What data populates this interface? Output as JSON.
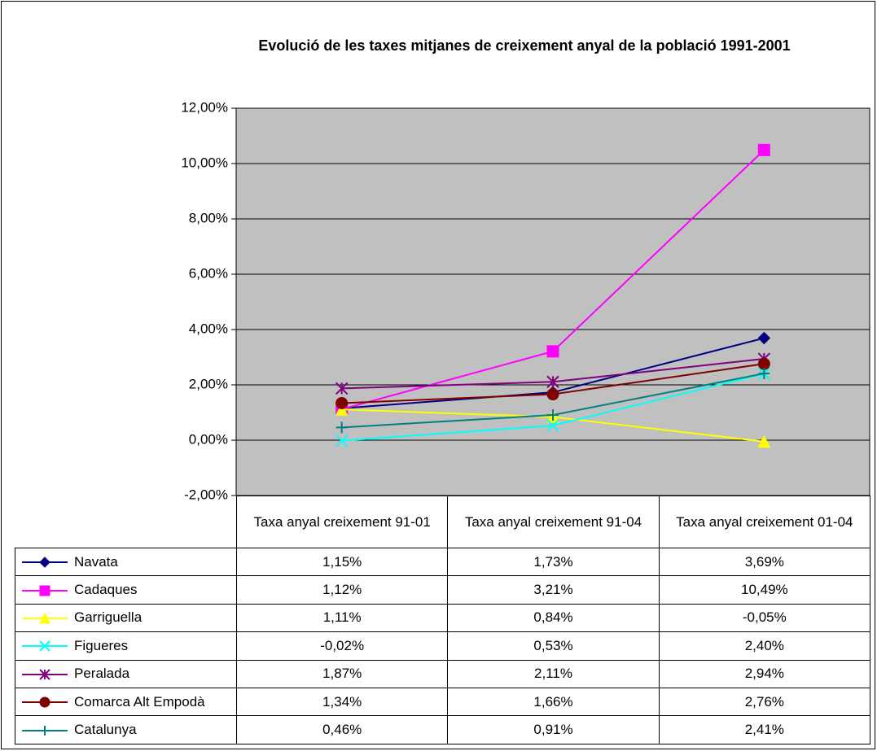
{
  "chart_data": {
    "type": "line",
    "title": "Evolució de les taxes mitjanes de creixement anyal de la població 1991-2001",
    "categories": [
      "Taxa anyal creixement 91-01",
      "Taxa anyal creixement 91-04",
      "Taxa anyal creixement 01-04"
    ],
    "ylim": [
      -2,
      12
    ],
    "yticks": [
      {
        "value": -2,
        "label": "-2,00%"
      },
      {
        "value": 0,
        "label": "0,00%"
      },
      {
        "value": 2,
        "label": "2,00%"
      },
      {
        "value": 4,
        "label": "4,00%"
      },
      {
        "value": 6,
        "label": "6,00%"
      },
      {
        "value": 8,
        "label": "8,00%"
      },
      {
        "value": 10,
        "label": "10,00%"
      },
      {
        "value": 12,
        "label": "12,00%"
      }
    ],
    "grid": true,
    "plot_background": "#c0c0c0",
    "series": [
      {
        "name": "Navata",
        "color": "#000080",
        "marker": "diamond",
        "values": [
          1.15,
          1.73,
          3.69
        ],
        "value_labels": [
          "1,15%",
          "1,73%",
          "3,69%"
        ]
      },
      {
        "name": "Cadaques",
        "color": "#ff00ff",
        "marker": "square",
        "values": [
          1.12,
          3.21,
          10.49
        ],
        "value_labels": [
          "1,12%",
          "3,21%",
          "10,49%"
        ]
      },
      {
        "name": "Garriguella",
        "color": "#ffff00",
        "marker": "triangle",
        "values": [
          1.11,
          0.84,
          -0.05
        ],
        "value_labels": [
          "1,11%",
          "0,84%",
          "-0,05%"
        ]
      },
      {
        "name": "Figueres",
        "color": "#00ffff",
        "marker": "x",
        "values": [
          -0.02,
          0.53,
          2.4
        ],
        "value_labels": [
          "-0,02%",
          "0,53%",
          "2,40%"
        ]
      },
      {
        "name": "Peralada",
        "color": "#800080",
        "marker": "star",
        "values": [
          1.87,
          2.11,
          2.94
        ],
        "value_labels": [
          "1,87%",
          "2,11%",
          "2,94%"
        ]
      },
      {
        "name": "Comarca Alt Empodà",
        "color": "#800000",
        "marker": "circle",
        "values": [
          1.34,
          1.66,
          2.76
        ],
        "value_labels": [
          "1,34%",
          "1,66%",
          "2,76%"
        ]
      },
      {
        "name": "Catalunya",
        "color": "#008080",
        "marker": "plus",
        "values": [
          0.46,
          0.91,
          2.41
        ],
        "value_labels": [
          "0,46%",
          "0,91%",
          "2,41%"
        ]
      }
    ]
  }
}
